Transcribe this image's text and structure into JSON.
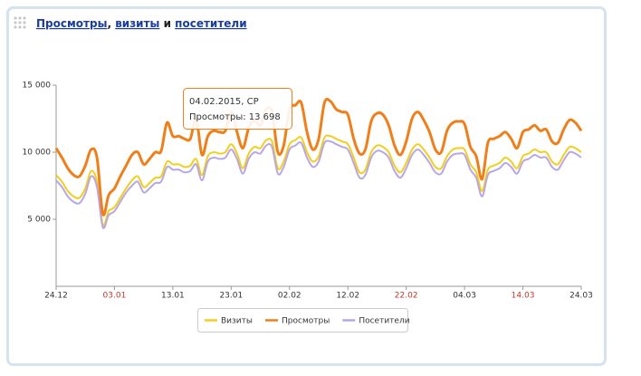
{
  "header": {
    "title": [
      {
        "text": "Просмотры",
        "link": true
      },
      {
        "text": ", ",
        "link": false
      },
      {
        "text": "визиты",
        "link": true
      },
      {
        "text": " и ",
        "link": false
      },
      {
        "text": "посетители",
        "link": true
      }
    ]
  },
  "chart_data": {
    "type": "line",
    "categories": [
      "24.12",
      null,
      null,
      null,
      null,
      null,
      null,
      null,
      null,
      null,
      "03.01",
      null,
      null,
      null,
      null,
      null,
      null,
      null,
      null,
      null,
      "13.01",
      null,
      null,
      null,
      null,
      null,
      null,
      null,
      null,
      null,
      "23.01",
      null,
      null,
      null,
      null,
      null,
      null,
      null,
      null,
      null,
      "02.02",
      null,
      null,
      null,
      null,
      null,
      null,
      null,
      null,
      null,
      "12.02",
      null,
      null,
      null,
      null,
      null,
      null,
      null,
      null,
      null,
      "22.02",
      null,
      null,
      null,
      null,
      null,
      null,
      null,
      null,
      null,
      "04.03",
      null,
      null,
      null,
      null,
      null,
      null,
      null,
      null,
      null,
      "14.03",
      null,
      null,
      null,
      null,
      null,
      null,
      null,
      null,
      null,
      "24.03"
    ],
    "highlighted_categories": [
      "03.01",
      "22.02",
      "14.03"
    ],
    "highlight_color": "#c0392b",
    "ylim": [
      0,
      15000
    ],
    "yticks": [
      {
        "value": 5000,
        "label": "5 000"
      },
      {
        "value": 10000,
        "label": "10 000"
      },
      {
        "value": 15000,
        "label": "15 000"
      }
    ],
    "grid": false,
    "series": [
      {
        "name": "Визиты",
        "color": "#f2cf1d",
        "width": 2,
        "values": [
          8300,
          7800,
          7100,
          6700,
          6600,
          7300,
          8600,
          7800,
          4600,
          5600,
          5900,
          6600,
          7300,
          7900,
          8200,
          7400,
          7700,
          8100,
          8200,
          9300,
          9100,
          9100,
          8900,
          9000,
          9500,
          8300,
          9700,
          10000,
          9900,
          10000,
          10600,
          9900,
          8800,
          9900,
          10400,
          10300,
          10900,
          10800,
          8800,
          9300,
          10600,
          10900,
          11100,
          10000,
          9300,
          9700,
          11100,
          11200,
          11000,
          10800,
          10600,
          9600,
          8500,
          8700,
          10000,
          10500,
          10400,
          10000,
          9000,
          8500,
          9200,
          10200,
          10600,
          10200,
          9600,
          8900,
          8800,
          9700,
          10200,
          10300,
          10200,
          9100,
          8500,
          7100,
          8700,
          9000,
          9200,
          9600,
          9300,
          8800,
          9700,
          9900,
          10200,
          10000,
          10000,
          9300,
          9100,
          9800,
          10400,
          10300,
          10000
        ]
      },
      {
        "name": "Просмотры",
        "color": "#f07f1a",
        "width": 3,
        "values": [
          10300,
          9600,
          8800,
          8300,
          8200,
          9000,
          10200,
          9600,
          5400,
          6800,
          7300,
          8200,
          9000,
          9800,
          10000,
          9100,
          9500,
          10000,
          10100,
          12200,
          11200,
          11200,
          11000,
          11000,
          12500,
          9800,
          11200,
          11600,
          11500,
          11600,
          13000,
          11500,
          10300,
          11800,
          12400,
          12000,
          13200,
          13000,
          10000,
          10500,
          13200,
          13500,
          13698,
          11500,
          10200,
          11000,
          13700,
          13800,
          13200,
          13000,
          12800,
          11000,
          9900,
          10200,
          12300,
          12900,
          12800,
          12000,
          10500,
          9800,
          10800,
          12500,
          13000,
          12400,
          11500,
          10200,
          10000,
          11600,
          12200,
          12300,
          12100,
          10400,
          9700,
          8000,
          10700,
          11000,
          11200,
          11500,
          11000,
          10300,
          11500,
          11700,
          12000,
          11600,
          11700,
          10800,
          10700,
          11700,
          12400,
          12200,
          11600
        ]
      },
      {
        "name": "Посетители",
        "color": "#b9a6e6",
        "width": 2,
        "values": [
          7900,
          7400,
          6700,
          6300,
          6200,
          6900,
          8200,
          7400,
          4400,
          5300,
          5600,
          6300,
          7000,
          7500,
          7800,
          7000,
          7300,
          7700,
          7800,
          8900,
          8700,
          8700,
          8500,
          8600,
          9100,
          7900,
          9300,
          9600,
          9500,
          9600,
          10200,
          9500,
          8400,
          9500,
          10000,
          9900,
          10500,
          10400,
          8400,
          8900,
          10200,
          10500,
          10700,
          9600,
          8900,
          9300,
          10700,
          10800,
          10600,
          10400,
          10200,
          9200,
          8100,
          8300,
          9600,
          10100,
          10000,
          9600,
          8600,
          8100,
          8800,
          9800,
          10200,
          9800,
          9200,
          8500,
          8400,
          9300,
          9800,
          9900,
          9800,
          8700,
          8100,
          6700,
          8300,
          8600,
          8800,
          9200,
          8900,
          8400,
          9300,
          9500,
          9800,
          9600,
          9600,
          8900,
          8700,
          9400,
          10000,
          9900,
          9600
        ]
      }
    ],
    "tooltip": {
      "title": "04.02.2015, СР",
      "label": "Просмотры: 13 698"
    }
  }
}
